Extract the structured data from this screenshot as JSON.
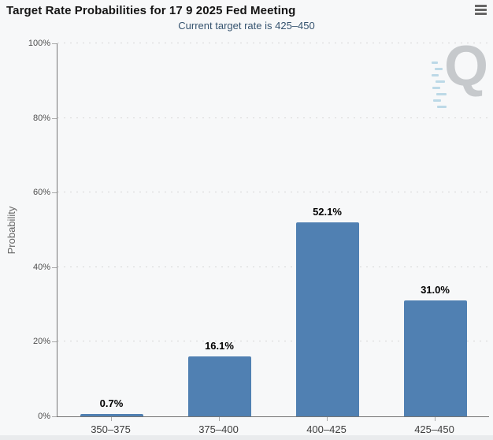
{
  "header": {
    "title": "Target Rate Probabilities for 17 9 2025 Fed Meeting",
    "subtitle": "Current target rate is 425–450",
    "menu_icon": "hamburger-menu-icon"
  },
  "chart_data": {
    "type": "bar",
    "title": "Target Rate Probabilities for 17 9 2025 Fed Meeting",
    "subtitle": "Current target rate is 425–450",
    "categories": [
      "350–375",
      "375–400",
      "400–425",
      "425–450"
    ],
    "values": [
      0.7,
      16.1,
      52.1,
      31.0
    ],
    "data_labels": [
      "0.7%",
      "16.1%",
      "52.1%",
      "31.0%"
    ],
    "xlabel": "",
    "ylabel": "Probability",
    "ylim": [
      0,
      100
    ],
    "yticks": [
      0,
      20,
      40,
      60,
      80,
      100
    ],
    "ytick_labels": [
      "0%",
      "20%",
      "40%",
      "60%",
      "80%",
      "100%"
    ],
    "grid": "dotted horizontal gridlines",
    "legend": "none",
    "bar_color": "#5080b2"
  },
  "watermark": {
    "letter": "Q"
  },
  "colors": {
    "bar": "#5080b2",
    "subtitle_text": "#35536f",
    "axis": "#767676",
    "background": "#f7f8f9"
  }
}
